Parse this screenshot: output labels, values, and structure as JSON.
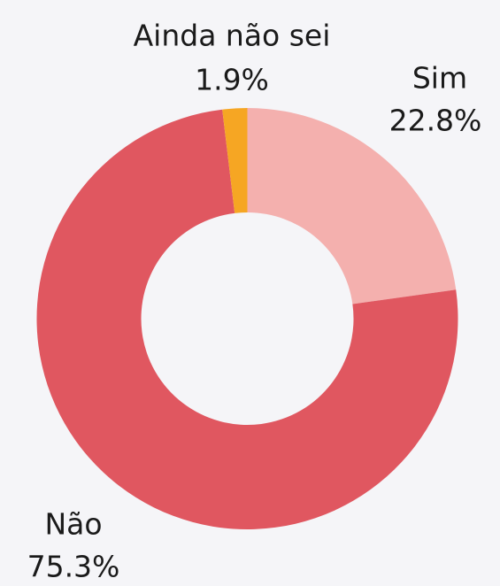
{
  "chart_data": {
    "type": "donut",
    "categories": [
      "Sim",
      "Não",
      "Ainda não sei"
    ],
    "values": [
      22.8,
      75.3,
      1.9
    ],
    "value_labels": [
      "22.8%",
      "75.3%",
      "1.9%"
    ],
    "colors": [
      "#f4b0ae",
      "#e05760",
      "#f6a623"
    ]
  }
}
